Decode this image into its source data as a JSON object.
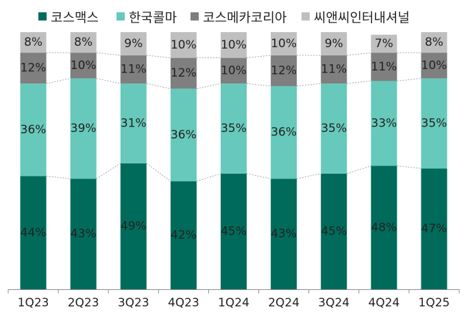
{
  "chart_data": {
    "type": "bar",
    "stacked": true,
    "percent": true,
    "categories": [
      "1Q23",
      "2Q23",
      "3Q23",
      "4Q23",
      "1Q24",
      "2Q24",
      "3Q24",
      "4Q24",
      "1Q25"
    ],
    "series": [
      {
        "name": "코스맥스",
        "color": "#006b5b",
        "values": [
          44,
          43,
          49,
          42,
          45,
          43,
          45,
          48,
          47
        ]
      },
      {
        "name": "한국콜마",
        "color": "#66c9bb",
        "values": [
          36,
          39,
          31,
          36,
          35,
          36,
          35,
          33,
          35
        ]
      },
      {
        "name": "코스메카코리아",
        "color": "#7f7f7f",
        "values": [
          12,
          10,
          11,
          12,
          10,
          12,
          11,
          11,
          10
        ]
      },
      {
        "name": "씨앤씨인터내셔널",
        "color": "#bfbfbf",
        "values": [
          8,
          8,
          9,
          10,
          10,
          10,
          9,
          7,
          8
        ]
      }
    ],
    "ylim": [
      0,
      100
    ],
    "legend": "top",
    "grid": false,
    "data_label_suffix": "%"
  }
}
